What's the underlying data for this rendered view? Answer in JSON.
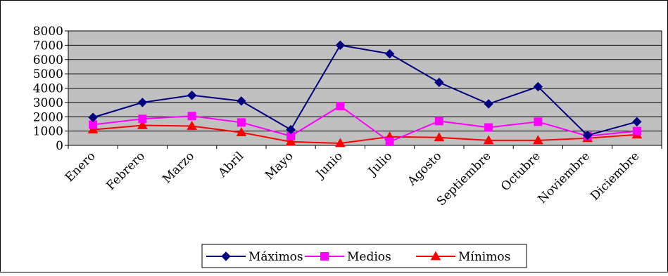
{
  "chart_data": {
    "type": "line",
    "categories": [
      "Enero",
      "Febrero",
      "Marzo",
      "Abril",
      "Mayo",
      "Junio",
      "Julio",
      "Agosto",
      "Septiembre",
      "Octubre",
      "Noviembre",
      "Diciembre"
    ],
    "ylim": [
      0,
      8000
    ],
    "yticks": [
      "8000",
      "7000",
      "6000",
      "5000",
      "4000",
      "3000",
      "2000",
      "1000",
      "0"
    ],
    "grid": true,
    "legend_position": "bottom-center",
    "plot_background": "#c0c0c0",
    "series": [
      {
        "name": "Máximos",
        "color": "#000080",
        "marker": "diamond",
        "values": [
          1950,
          3000,
          3500,
          3100,
          1100,
          7000,
          6400,
          4400,
          2900,
          4100,
          700,
          1650
        ]
      },
      {
        "name": "Medios",
        "color": "#ff00ff",
        "marker": "square",
        "values": [
          1450,
          1850,
          2050,
          1600,
          650,
          2750,
          250,
          1700,
          1250,
          1650,
          650,
          1000
        ]
      },
      {
        "name": "Mínimos",
        "color": "#ff0000",
        "marker": "triangle",
        "values": [
          1100,
          1400,
          1350,
          900,
          250,
          150,
          600,
          550,
          350,
          350,
          500,
          750
        ]
      }
    ]
  }
}
